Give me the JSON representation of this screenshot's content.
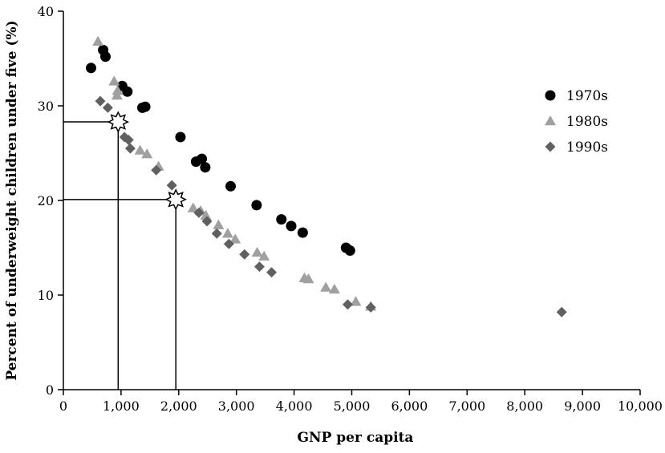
{
  "chart_data": {
    "type": "scatter",
    "xlabel": "GNP per capita",
    "ylabel": "Percent of underweight children under five (%)",
    "xlim": [
      0,
      10000
    ],
    "ylim": [
      0,
      40
    ],
    "x_ticks": [
      0,
      1000,
      2000,
      3000,
      4000,
      5000,
      6000,
      7000,
      8000,
      9000,
      10000
    ],
    "x_tick_labels": [
      "0",
      "1,000",
      "2,000",
      "3,000",
      "4,000",
      "5,000",
      "6,000",
      "7,000",
      "8,000",
      "9,000",
      "10,000"
    ],
    "y_ticks": [
      0,
      10,
      20,
      30,
      40
    ],
    "y_tick_labels": [
      "0",
      "10",
      "20",
      "30",
      "40"
    ],
    "grid": false,
    "legend_position": "right",
    "series": [
      {
        "name": "1970s",
        "marker": "circle",
        "color": "#000000",
        "points": [
          [
            480,
            34.0
          ],
          [
            690,
            35.9
          ],
          [
            730,
            35.2
          ],
          [
            1020,
            32.1
          ],
          [
            1110,
            31.5
          ],
          [
            1370,
            29.8
          ],
          [
            1420,
            29.9
          ],
          [
            2030,
            26.7
          ],
          [
            2300,
            24.1
          ],
          [
            2400,
            24.4
          ],
          [
            2460,
            23.5
          ],
          [
            2900,
            21.5
          ],
          [
            3350,
            19.5
          ],
          [
            3780,
            18.0
          ],
          [
            3950,
            17.3
          ],
          [
            4150,
            16.6
          ],
          [
            4900,
            15.0
          ],
          [
            4970,
            14.7
          ]
        ]
      },
      {
        "name": "1980s",
        "marker": "triangle",
        "color": "#a0a0a0",
        "points": [
          [
            600,
            36.8
          ],
          [
            880,
            32.6
          ],
          [
            930,
            31.1
          ],
          [
            940,
            31.6
          ],
          [
            1330,
            25.3
          ],
          [
            1450,
            24.9
          ],
          [
            1650,
            23.6
          ],
          [
            2250,
            19.2
          ],
          [
            2380,
            18.9
          ],
          [
            2470,
            18.4
          ],
          [
            2690,
            17.4
          ],
          [
            2850,
            16.5
          ],
          [
            2980,
            15.9
          ],
          [
            3360,
            14.5
          ],
          [
            3480,
            14.1
          ],
          [
            4180,
            11.8
          ],
          [
            4250,
            11.7
          ],
          [
            4550,
            10.8
          ],
          [
            4700,
            10.6
          ],
          [
            5070,
            9.3
          ],
          [
            5330,
            8.8
          ]
        ]
      },
      {
        "name": "1990s",
        "marker": "diamond",
        "color": "#606060",
        "points": [
          [
            640,
            30.5
          ],
          [
            770,
            29.8
          ],
          [
            1060,
            26.7
          ],
          [
            1130,
            26.4
          ],
          [
            1160,
            25.5
          ],
          [
            1610,
            23.2
          ],
          [
            1880,
            21.6
          ],
          [
            2350,
            18.7
          ],
          [
            2490,
            17.8
          ],
          [
            2660,
            16.5
          ],
          [
            2870,
            15.4
          ],
          [
            3140,
            14.3
          ],
          [
            3400,
            13.0
          ],
          [
            3610,
            12.4
          ],
          [
            4930,
            9.0
          ],
          [
            5330,
            8.7
          ],
          [
            8640,
            8.2
          ]
        ]
      }
    ],
    "annotations": [
      {
        "marker": "star",
        "x": 950,
        "y": 28.3
      },
      {
        "marker": "star",
        "x": 1950,
        "y": 20.1
      }
    ]
  }
}
